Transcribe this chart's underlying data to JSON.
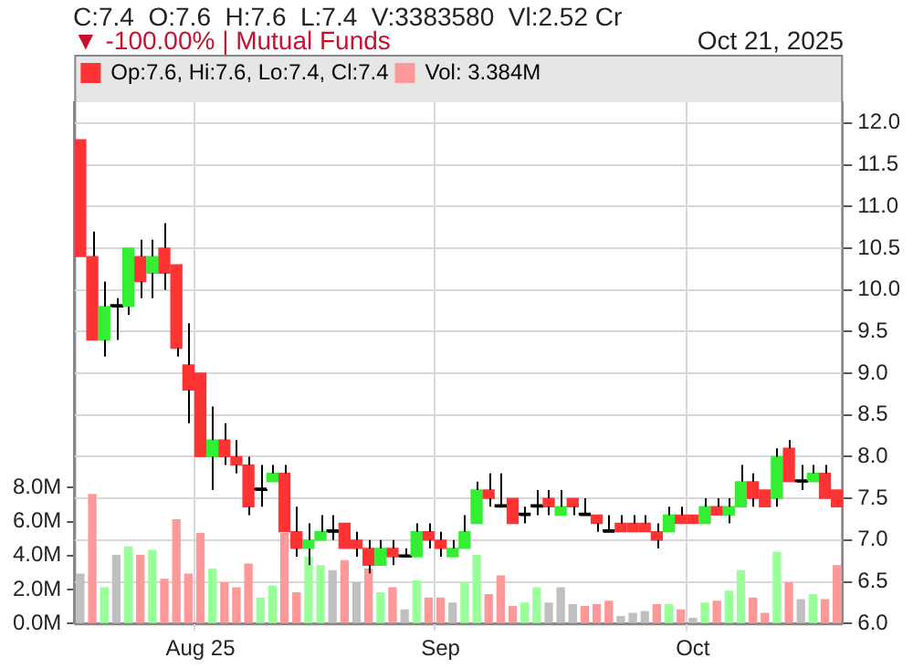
{
  "chart_data": {
    "type": "candlestick",
    "title": "C:7.4  O:7.6  H:7.6  L:7.4  V:3383580  Vl:2.52 Cr",
    "subtitle": "▼ -100.00% | Mutual Funds",
    "annotations": [
      "Oct 21, 2025"
    ],
    "categories": [
      null,
      null,
      null,
      null,
      null,
      null,
      null,
      null,
      null,
      null,
      "Aug 25",
      null,
      null,
      null,
      null,
      null,
      null,
      null,
      null,
      null,
      null,
      null,
      null,
      null,
      null,
      null,
      null,
      null,
      null,
      null,
      "Sep",
      null,
      null,
      null,
      null,
      null,
      null,
      null,
      null,
      null,
      null,
      null,
      null,
      null,
      null,
      null,
      null,
      null,
      null,
      null,
      null,
      "Oct",
      null,
      null,
      null,
      null,
      null,
      null,
      null,
      null,
      null,
      null,
      null,
      null
    ],
    "legend": "top left",
    "grid": true,
    "ylim": [
      6,
      12.25
    ],
    "yticks": [
      {
        "value": 6,
        "label": "6.0"
      },
      {
        "value": 6.5,
        "label": "6.5"
      },
      {
        "value": 7,
        "label": "7.0"
      },
      {
        "value": 7.5,
        "label": "7.5"
      },
      {
        "value": 8,
        "label": "8.0"
      },
      {
        "value": 8.5,
        "label": "8.5"
      },
      {
        "value": 9,
        "label": "9.0"
      },
      {
        "value": 9.5,
        "label": "9.5"
      },
      {
        "value": 10,
        "label": "10.0"
      },
      {
        "value": 10.5,
        "label": "10.5"
      },
      {
        "value": 11,
        "label": "11.0"
      },
      {
        "value": 11.5,
        "label": "11.5"
      },
      {
        "value": 12,
        "label": "12.0"
      }
    ],
    "y2lim": [
      0,
      30.7
    ],
    "y2ticks": [
      {
        "value": 0,
        "label": "0.0M"
      },
      {
        "value": 2,
        "label": "2.0M"
      },
      {
        "value": 4,
        "label": "4.0M"
      },
      {
        "value": 6,
        "label": "6.0M"
      },
      {
        "value": 8,
        "label": "8.0M"
      }
    ],
    "series": [
      {
        "name": "Op:7.6, Hi:7.6, Lo:7.4, Cl:7.4",
        "color": "#ff3333",
        "colors": [
          "#ff3333",
          "#ff3333",
          "#33ee33",
          "#000000",
          "#33ee33",
          "#ff3333",
          "#33ee33",
          "#ff3333",
          "#ff3333",
          "#ff3333",
          "#ff3333",
          "#33ee33",
          "#ff3333",
          "#ff3333",
          "#ff3333",
          "#000000",
          "#33ee33",
          "#ff3333",
          "#ff3333",
          "#33ee33",
          "#33ee33",
          "#000000",
          "#ff3333",
          "#ff3333",
          "#ff3333",
          "#33ee33",
          "#ff3333",
          "#000000",
          "#33ee33",
          "#ff3333",
          "#ff3333",
          "#33ee33",
          "#33ee33",
          "#33ee33",
          "#ff3333",
          "#000000",
          "#ff3333",
          "#000000",
          "#000000",
          "#ff3333",
          "#33ee33",
          "#ff3333",
          "#000000",
          "#ff3333",
          "#000000",
          "#ff3333",
          "#ff3333",
          "#ff3333",
          "#ff3333",
          "#33ee33",
          "#ff3333",
          "#ff3333",
          "#33ee33",
          "#ff3333",
          "#33ee33",
          "#33ee33",
          "#ff3333",
          "#ff3333",
          "#33ee33",
          "#ff3333",
          "#000000",
          "#33ee33",
          "#ff3333",
          "#ff3333"
        ],
        "ohlc": [
          [
            11.8,
            11.8,
            10.4,
            10.4
          ],
          [
            10.4,
            10.7,
            9.4,
            9.4
          ],
          [
            9.4,
            10.1,
            9.2,
            9.8
          ],
          [
            9.8,
            9.9,
            9.4,
            9.8
          ],
          [
            9.8,
            10.5,
            9.7,
            10.5
          ],
          [
            10.4,
            10.6,
            9.9,
            10.1
          ],
          [
            10.2,
            10.6,
            9.9,
            10.4
          ],
          [
            10.5,
            10.8,
            10.0,
            10.2
          ],
          [
            10.3,
            10.3,
            9.2,
            9.3
          ],
          [
            9.1,
            9.6,
            8.4,
            8.8
          ],
          [
            9.0,
            9.0,
            8.0,
            8.0
          ],
          [
            8.0,
            8.6,
            7.6,
            8.2
          ],
          [
            8.2,
            8.4,
            7.9,
            8.0
          ],
          [
            8.0,
            8.2,
            7.8,
            7.9
          ],
          [
            7.9,
            8.0,
            7.3,
            7.4
          ],
          [
            7.6,
            7.9,
            7.4,
            7.6
          ],
          [
            7.7,
            7.9,
            7.7,
            7.8
          ],
          [
            7.8,
            7.9,
            7.1,
            7.1
          ],
          [
            7.1,
            7.4,
            6.8,
            6.9
          ],
          [
            6.9,
            7.2,
            6.7,
            7.0
          ],
          [
            7.0,
            7.3,
            7.0,
            7.1
          ],
          [
            7.1,
            7.3,
            7.0,
            7.1
          ],
          [
            7.2,
            7.2,
            6.9,
            6.9
          ],
          [
            7.0,
            7.1,
            6.8,
            6.9
          ],
          [
            6.9,
            7.0,
            6.6,
            6.7
          ],
          [
            6.7,
            7.0,
            6.7,
            6.9
          ],
          [
            6.9,
            7.0,
            6.7,
            6.8
          ],
          [
            6.8,
            6.9,
            6.8,
            6.8
          ],
          [
            6.8,
            7.2,
            6.8,
            7.1
          ],
          [
            7.1,
            7.2,
            6.9,
            7.0
          ],
          [
            7.0,
            7.1,
            6.8,
            6.9
          ],
          [
            6.8,
            7.0,
            6.8,
            6.9
          ],
          [
            6.9,
            7.3,
            6.9,
            7.1
          ],
          [
            7.2,
            7.7,
            7.2,
            7.6
          ],
          [
            7.6,
            7.8,
            7.4,
            7.5
          ],
          [
            7.4,
            7.8,
            7.4,
            7.4
          ],
          [
            7.5,
            7.5,
            7.2,
            7.2
          ],
          [
            7.3,
            7.4,
            7.2,
            7.3
          ],
          [
            7.4,
            7.6,
            7.3,
            7.4
          ],
          [
            7.5,
            7.6,
            7.3,
            7.4
          ],
          [
            7.3,
            7.6,
            7.3,
            7.4
          ],
          [
            7.5,
            7.5,
            7.3,
            7.4
          ],
          [
            7.3,
            7.5,
            7.3,
            7.3
          ],
          [
            7.3,
            7.3,
            7.1,
            7.2
          ],
          [
            7.1,
            7.3,
            7.1,
            7.1
          ],
          [
            7.2,
            7.3,
            7.1,
            7.1
          ],
          [
            7.2,
            7.3,
            7.1,
            7.1
          ],
          [
            7.2,
            7.3,
            7.1,
            7.1
          ],
          [
            7.1,
            7.2,
            6.9,
            7.0
          ],
          [
            7.1,
            7.4,
            7.1,
            7.3
          ],
          [
            7.3,
            7.4,
            7.2,
            7.2
          ],
          [
            7.3,
            7.3,
            7.2,
            7.2
          ],
          [
            7.2,
            7.5,
            7.2,
            7.4
          ],
          [
            7.4,
            7.5,
            7.3,
            7.3
          ],
          [
            7.3,
            7.5,
            7.2,
            7.4
          ],
          [
            7.4,
            7.9,
            7.4,
            7.7
          ],
          [
            7.7,
            7.8,
            7.4,
            7.5
          ],
          [
            7.6,
            7.6,
            7.4,
            7.4
          ],
          [
            7.5,
            8.1,
            7.4,
            8.0
          ],
          [
            8.1,
            8.2,
            7.7,
            7.7
          ],
          [
            7.7,
            7.9,
            7.6,
            7.7
          ],
          [
            7.7,
            7.9,
            7.7,
            7.8
          ],
          [
            7.8,
            7.9,
            7.5,
            7.5
          ],
          [
            7.6,
            7.6,
            7.4,
            7.4
          ]
        ]
      },
      {
        "type": "bar",
        "axis": "y2",
        "name": "Vol: 3.384M",
        "color": "#ff9999",
        "colors": [
          "#c0c0c0",
          "#ff9999",
          "#99ff99",
          "#c0c0c0",
          "#99ff99",
          "#ff9999",
          "#99ff99",
          "#ff9999",
          "#ff9999",
          "#ff9999",
          "#ff9999",
          "#99ff99",
          "#ff9999",
          "#ff9999",
          "#ff9999",
          "#99ff99",
          "#99ff99",
          "#ff9999",
          "#ff9999",
          "#99ff99",
          "#99ff99",
          "#c0c0c0",
          "#ff9999",
          "#c0c0c0",
          "#ff9999",
          "#99ff99",
          "#ff9999",
          "#c0c0c0",
          "#99ff99",
          "#ff9999",
          "#ff9999",
          "#c0c0c0",
          "#99ff99",
          "#99ff99",
          "#ff9999",
          "#ff9999",
          "#ff9999",
          "#99ff99",
          "#99ff99",
          "#c0c0c0",
          "#c0c0c0",
          "#c0c0c0",
          "#ff9999",
          "#ff9999",
          "#ff9999",
          "#c0c0c0",
          "#c0c0c0",
          "#c0c0c0",
          "#ff9999",
          "#99ff99",
          "#ff9999",
          "#c0c0c0",
          "#99ff99",
          "#ff9999",
          "#99ff99",
          "#99ff99",
          "#ff9999",
          "#ff9999",
          "#99ff99",
          "#ff9999",
          "#c0c0c0",
          "#99ff99",
          "#ff9999",
          "#ff9999"
        ],
        "values": [
          2.9,
          7.6,
          2.1,
          4.0,
          4.5,
          4.0,
          4.3,
          2.6,
          6.1,
          2.9,
          5.3,
          3.2,
          2.4,
          2.1,
          3.5,
          1.5,
          2.2,
          5.3,
          1.8,
          3.9,
          3.4,
          3.1,
          3.7,
          2.4,
          3.2,
          1.8,
          2.1,
          0.8,
          2.5,
          1.5,
          1.5,
          1.2,
          2.4,
          4.0,
          1.7,
          2.8,
          1.0,
          1.2,
          2.1,
          1.2,
          2.1,
          1.1,
          1.0,
          1.1,
          1.3,
          0.4,
          0.6,
          0.7,
          1.1,
          1.1,
          0.8,
          0.3,
          1.2,
          1.3,
          1.9,
          3.1,
          1.5,
          0.6,
          4.2,
          2.4,
          1.4,
          1.7,
          1.4,
          3.4
        ]
      }
    ]
  }
}
